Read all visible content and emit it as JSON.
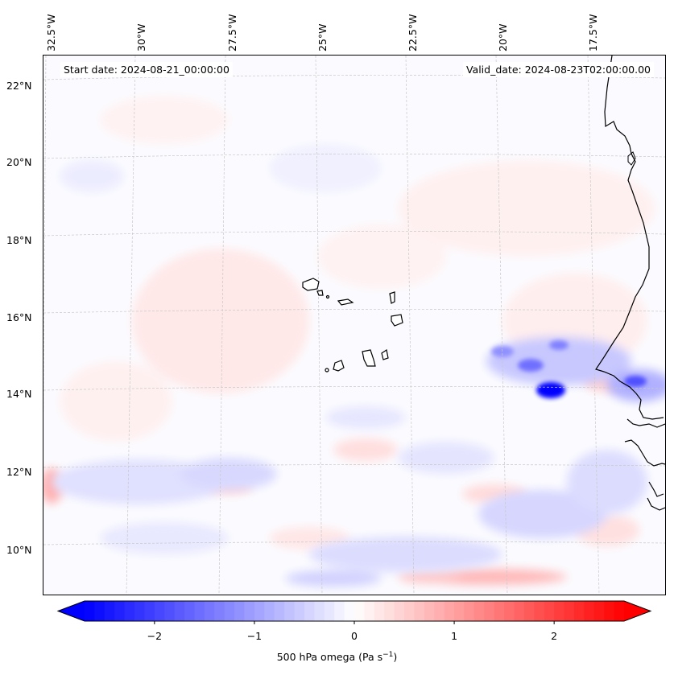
{
  "map": {
    "start_date": "Start date: 2024-08-21_00:00:00",
    "valid_date": "Valid_date: 2024-08-23T02:00:00.00",
    "lon_labels": [
      "32.5°W",
      "30°W",
      "27.5°W",
      "25°W",
      "22.5°W",
      "20°W",
      "17.5°W"
    ],
    "lat_labels": [
      "22°N",
      "20°N",
      "18°N",
      "16°N",
      "14°N",
      "12°N",
      "10°N"
    ],
    "extent": {
      "lon_min": -32.6,
      "lon_max": -15.0,
      "lat_min": 8.8,
      "lat_max": 22.8
    },
    "islands": [
      "Santo Antão",
      "São Vicente",
      "Santa Luzia",
      "São Nicolau",
      "Sal",
      "Boa Vista",
      "Maio",
      "Santiago",
      "Fogo",
      "Brava"
    ]
  },
  "colorbar": {
    "label_text": "500 hPa omega (Pa s",
    "label_sup": "−1",
    "label_end": ")",
    "ticks": [
      "−2",
      "−1",
      "0",
      "1",
      "2"
    ],
    "min": -2.7,
    "max": 2.7,
    "colormap": "bwr",
    "color_negative": "#0000ff",
    "color_zero": "#ffffff",
    "color_positive": "#ff0000"
  }
}
